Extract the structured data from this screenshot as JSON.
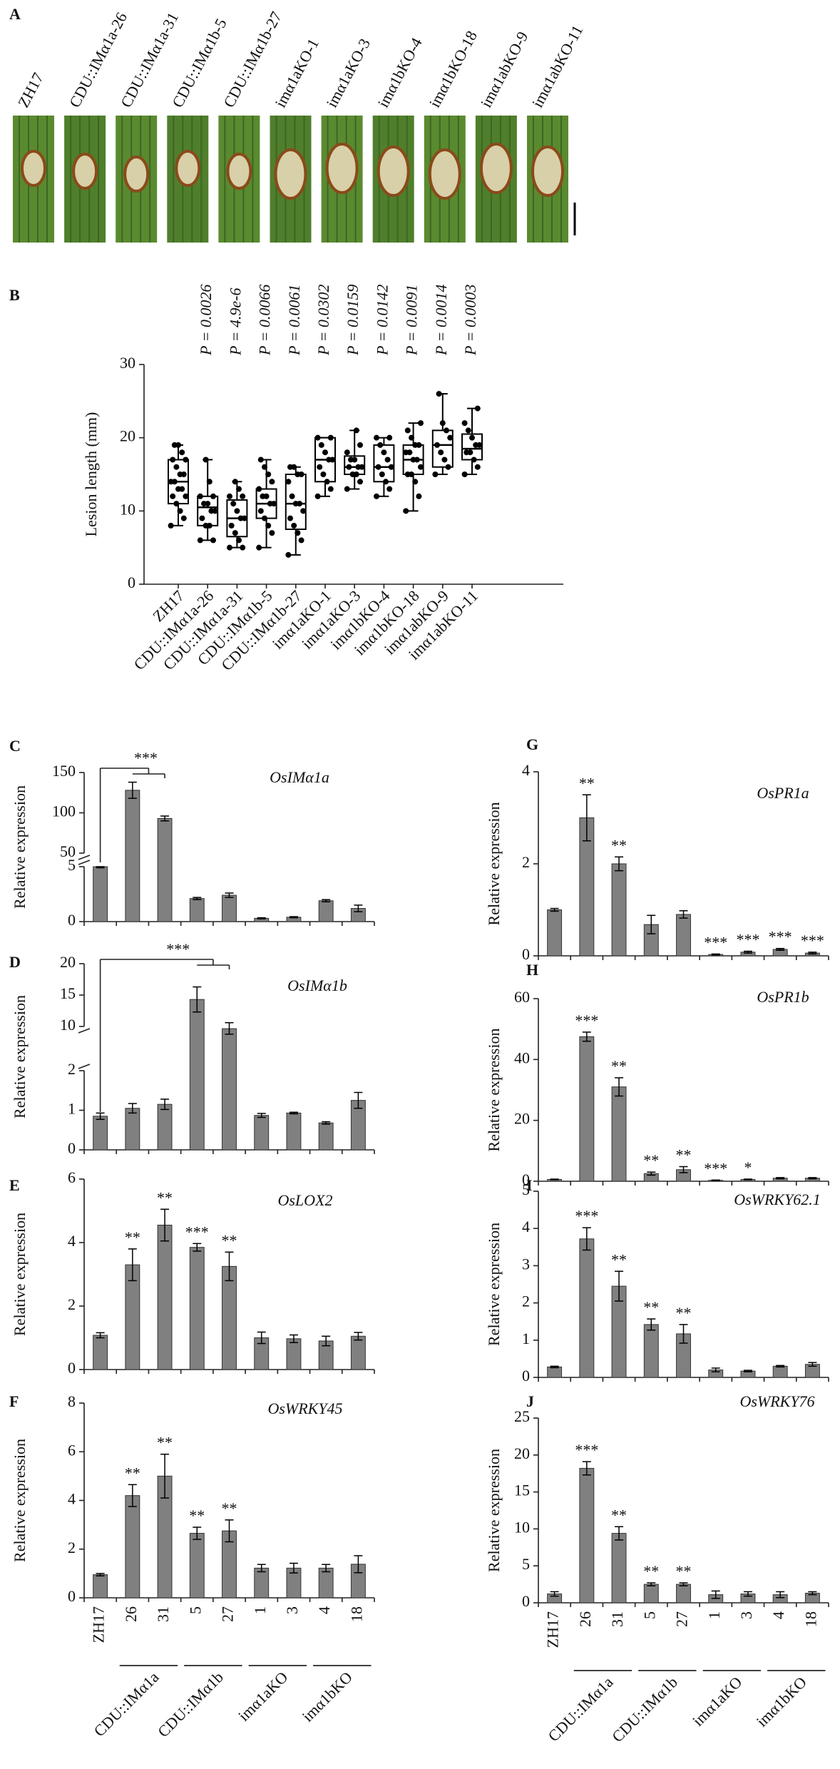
{
  "chart_data": [
    {
      "type": "photo",
      "panel": "A",
      "samples": [
        "ZH17",
        "CDU::IMα1a-26",
        "CDU::IMα1a-31",
        "CDU::IMα1b-5",
        "CDU::IMα1b-27",
        "imα1aKO-1",
        "imα1aKO-3",
        "imα1bKO-4",
        "imα1bKO-18",
        "imα1abKO-9",
        "imα1abKO-11"
      ]
    },
    {
      "type": "box",
      "panel": "B",
      "ylabel": "Lesion length (mm)",
      "categories": [
        "ZH17",
        "CDU::IMα1a-26",
        "CDU::IMα1a-31",
        "CDU::IMα1b-5",
        "CDU::IMα1b-27",
        "imα1aKO-1",
        "imα1aKO-3",
        "imα1bKO-4",
        "imα1bKO-18",
        "imα1abKO-9",
        "imα1abKO-11"
      ],
      "annotations": [
        null,
        "P = 0.0026",
        "P = 4.9e-6",
        "P = 0.0066",
        "P = 0.0061",
        "P = 0.0302",
        "P = 0.0159",
        "P = 0.0142",
        "P = 0.0091",
        "P = 0.0014",
        "P = 0.0003"
      ],
      "ylim": [
        0,
        30
      ],
      "yticks": [
        0,
        10,
        20,
        30
      ],
      "boxes": [
        {
          "min": 8,
          "q1": 11,
          "median": 14,
          "q3": 17,
          "max": 19,
          "points": [
            8,
            9,
            10,
            11,
            12,
            12,
            13,
            13,
            14,
            14,
            15,
            15,
            16,
            17,
            17,
            18,
            19,
            19
          ]
        },
        {
          "min": 6,
          "q1": 8,
          "median": 10.5,
          "q3": 12,
          "max": 17,
          "points": [
            6,
            6,
            8,
            8,
            9,
            10,
            10,
            11,
            11,
            12,
            12,
            14,
            17
          ]
        },
        {
          "min": 5,
          "q1": 6.5,
          "median": 9,
          "q3": 11.5,
          "max": 14,
          "points": [
            5,
            5,
            6,
            7,
            8,
            9,
            9,
            10,
            11,
            12,
            12,
            13,
            14
          ]
        },
        {
          "min": 5,
          "q1": 9,
          "median": 11,
          "q3": 13,
          "max": 17,
          "points": [
            5,
            7,
            8,
            9,
            10,
            11,
            11,
            12,
            12,
            13,
            14,
            15,
            16,
            17
          ]
        },
        {
          "min": 4,
          "q1": 7.5,
          "median": 11,
          "q3": 15,
          "max": 16,
          "points": [
            4,
            6,
            7,
            8,
            9,
            10,
            11,
            11,
            12,
            14,
            15,
            15,
            16,
            16
          ]
        },
        {
          "min": 12,
          "q1": 14,
          "median": 17,
          "q3": 20,
          "max": 20,
          "points": [
            12,
            13,
            14,
            15,
            16,
            17,
            17,
            18,
            19,
            20,
            20
          ]
        },
        {
          "min": 13,
          "q1": 15,
          "median": 16,
          "q3": 17.5,
          "max": 21,
          "points": [
            13,
            14,
            15,
            15,
            16,
            16,
            16,
            17,
            17,
            18,
            19,
            21
          ]
        },
        {
          "min": 12,
          "q1": 14,
          "median": 16,
          "q3": 19,
          "max": 20,
          "points": [
            12,
            13,
            14,
            15,
            16,
            16,
            17,
            18,
            19,
            20,
            20
          ]
        },
        {
          "min": 10,
          "q1": 15,
          "median": 17,
          "q3": 19,
          "max": 22,
          "points": [
            10,
            12,
            14,
            15,
            15,
            16,
            17,
            17,
            18,
            18,
            19,
            19,
            20,
            21,
            22
          ]
        },
        {
          "min": 15,
          "q1": 16,
          "median": 19,
          "q3": 21,
          "max": 26,
          "points": [
            15,
            16,
            17,
            18,
            19,
            20,
            21,
            22,
            26
          ]
        },
        {
          "min": 15,
          "q1": 17,
          "median": 18.5,
          "q3": 20.5,
          "max": 24,
          "points": [
            15,
            16,
            17,
            18,
            18,
            19,
            19,
            20,
            21,
            22,
            24
          ]
        }
      ]
    },
    {
      "type": "bar",
      "panel": "C",
      "title": "OsIMα1a",
      "ylabel": "Relative expression",
      "color": "#808080",
      "values": [
        5,
        128,
        93,
        2.1,
        2.4,
        0.3,
        0.4,
        1.9,
        1.2
      ],
      "errors": [
        0.1,
        10,
        3,
        0.1,
        0.2,
        0.05,
        0.05,
        0.1,
        0.3
      ],
      "ylim": [
        0,
        150
      ],
      "axis_break": [
        5,
        50
      ],
      "yticks": [
        0,
        5,
        50,
        100,
        150
      ],
      "annotation": "***"
    },
    {
      "type": "bar",
      "panel": "D",
      "title": "OsIMα1b",
      "ylabel": "Relative expression",
      "color": "#808080",
      "values": [
        0.85,
        1.05,
        1.15,
        14.3,
        9.6,
        0.87,
        0.93,
        0.68,
        1.25
      ],
      "errors": [
        0.08,
        0.12,
        0.13,
        2,
        1,
        0.05,
        0.02,
        0.03,
        0.2
      ],
      "ylim": [
        0,
        20
      ],
      "axis_break": [
        2,
        10
      ],
      "yticks": [
        0,
        1,
        2,
        10,
        15,
        20
      ],
      "annotation": "***"
    },
    {
      "type": "bar",
      "panel": "E",
      "title": "OsLOX2",
      "ylabel": "Relative expression",
      "color": "#808080",
      "values": [
        1.08,
        3.3,
        4.55,
        3.85,
        3.25,
        1.0,
        0.97,
        0.9,
        1.05
      ],
      "errors": [
        0.08,
        0.5,
        0.5,
        0.12,
        0.45,
        0.18,
        0.12,
        0.15,
        0.12
      ],
      "significance": [
        null,
        "**",
        "**",
        "***",
        "**",
        null,
        null,
        null,
        null
      ],
      "ylim": [
        0,
        6
      ],
      "yticks": [
        0,
        2,
        4,
        6
      ]
    },
    {
      "type": "bar",
      "panel": "F",
      "title": "OsWRKY45",
      "ylabel": "Relative expression",
      "color": "#808080",
      "values": [
        0.95,
        4.2,
        5.0,
        2.65,
        2.75,
        1.22,
        1.22,
        1.22,
        1.38
      ],
      "errors": [
        0.05,
        0.45,
        0.9,
        0.25,
        0.45,
        0.15,
        0.2,
        0.15,
        0.35
      ],
      "significance": [
        null,
        "**",
        "**",
        "**",
        "**",
        null,
        null,
        null,
        null
      ],
      "ylim": [
        0,
        8
      ],
      "yticks": [
        0,
        2,
        4,
        6,
        8
      ],
      "categories": [
        "ZH17",
        "26",
        "31",
        "5",
        "27",
        "1",
        "3",
        "4",
        "18"
      ],
      "groups": [
        null,
        "CDU::IMα1a",
        "CDU::IMα1a",
        "CDU::IMα1b",
        "CDU::IMα1b",
        "imα1aKO",
        "imα1aKO",
        "imα1bKO",
        "imα1bKO"
      ]
    },
    {
      "type": "bar",
      "panel": "G",
      "title": "OsPR1a",
      "ylabel": "Relative expression",
      "color": "#808080",
      "values": [
        1.0,
        3.0,
        2.0,
        0.68,
        0.9,
        0.03,
        0.08,
        0.14,
        0.06
      ],
      "errors": [
        0.03,
        0.5,
        0.15,
        0.2,
        0.08,
        0.01,
        0.02,
        0.02,
        0.02
      ],
      "significance": [
        null,
        "**",
        "**",
        null,
        null,
        "***",
        "***",
        "***",
        "***"
      ],
      "ylim": [
        0,
        4
      ],
      "yticks": [
        0,
        2,
        4
      ]
    },
    {
      "type": "bar",
      "panel": "H",
      "title": "OsPR1b",
      "ylabel": "Relative expression",
      "color": "#808080",
      "values": [
        0.6,
        47.5,
        31,
        2.5,
        3.8,
        0.3,
        0.6,
        1.0,
        1.0
      ],
      "errors": [
        0.1,
        1.5,
        3,
        0.5,
        1,
        0.1,
        0.1,
        0.2,
        0.2
      ],
      "significance": [
        null,
        "***",
        "**",
        "**",
        "**",
        "***",
        "*",
        null,
        null
      ],
      "ylim": [
        0,
        60
      ],
      "yticks": [
        0,
        20,
        40,
        60
      ]
    },
    {
      "type": "bar",
      "panel": "I",
      "title": "OsWRKY62.1",
      "ylabel": "Relative expression",
      "color": "#808080",
      "values": [
        0.28,
        3.72,
        2.45,
        1.42,
        1.17,
        0.2,
        0.17,
        0.3,
        0.35
      ],
      "errors": [
        0.02,
        0.3,
        0.4,
        0.15,
        0.25,
        0.05,
        0.02,
        0.02,
        0.05
      ],
      "significance": [
        null,
        "***",
        "**",
        "**",
        "**",
        null,
        null,
        null,
        null
      ],
      "ylim": [
        0,
        5
      ],
      "yticks": [
        0,
        1,
        2,
        3,
        4,
        5
      ]
    },
    {
      "type": "bar",
      "panel": "J",
      "title": "OsWRKY76",
      "ylabel": "Relative expression",
      "color": "#808080",
      "values": [
        1.2,
        18.2,
        9.4,
        2.5,
        2.5,
        1.1,
        1.2,
        1.1,
        1.3
      ],
      "errors": [
        0.3,
        0.9,
        0.9,
        0.2,
        0.2,
        0.5,
        0.3,
        0.4,
        0.2
      ],
      "significance": [
        null,
        "***",
        "**",
        "**",
        "**",
        null,
        null,
        null,
        null
      ],
      "ylim": [
        0,
        25
      ],
      "yticks": [
        0,
        5,
        10,
        15,
        20,
        25
      ],
      "categories": [
        "ZH17",
        "26",
        "31",
        "5",
        "27",
        "1",
        "3",
        "4",
        "18"
      ],
      "groups": [
        null,
        "CDU::IMα1a",
        "CDU::IMα1a",
        "CDU::IMα1b",
        "CDU::IMα1b",
        "imα1aKO",
        "imα1aKO",
        "imα1bKO",
        "imα1bKO"
      ]
    }
  ]
}
